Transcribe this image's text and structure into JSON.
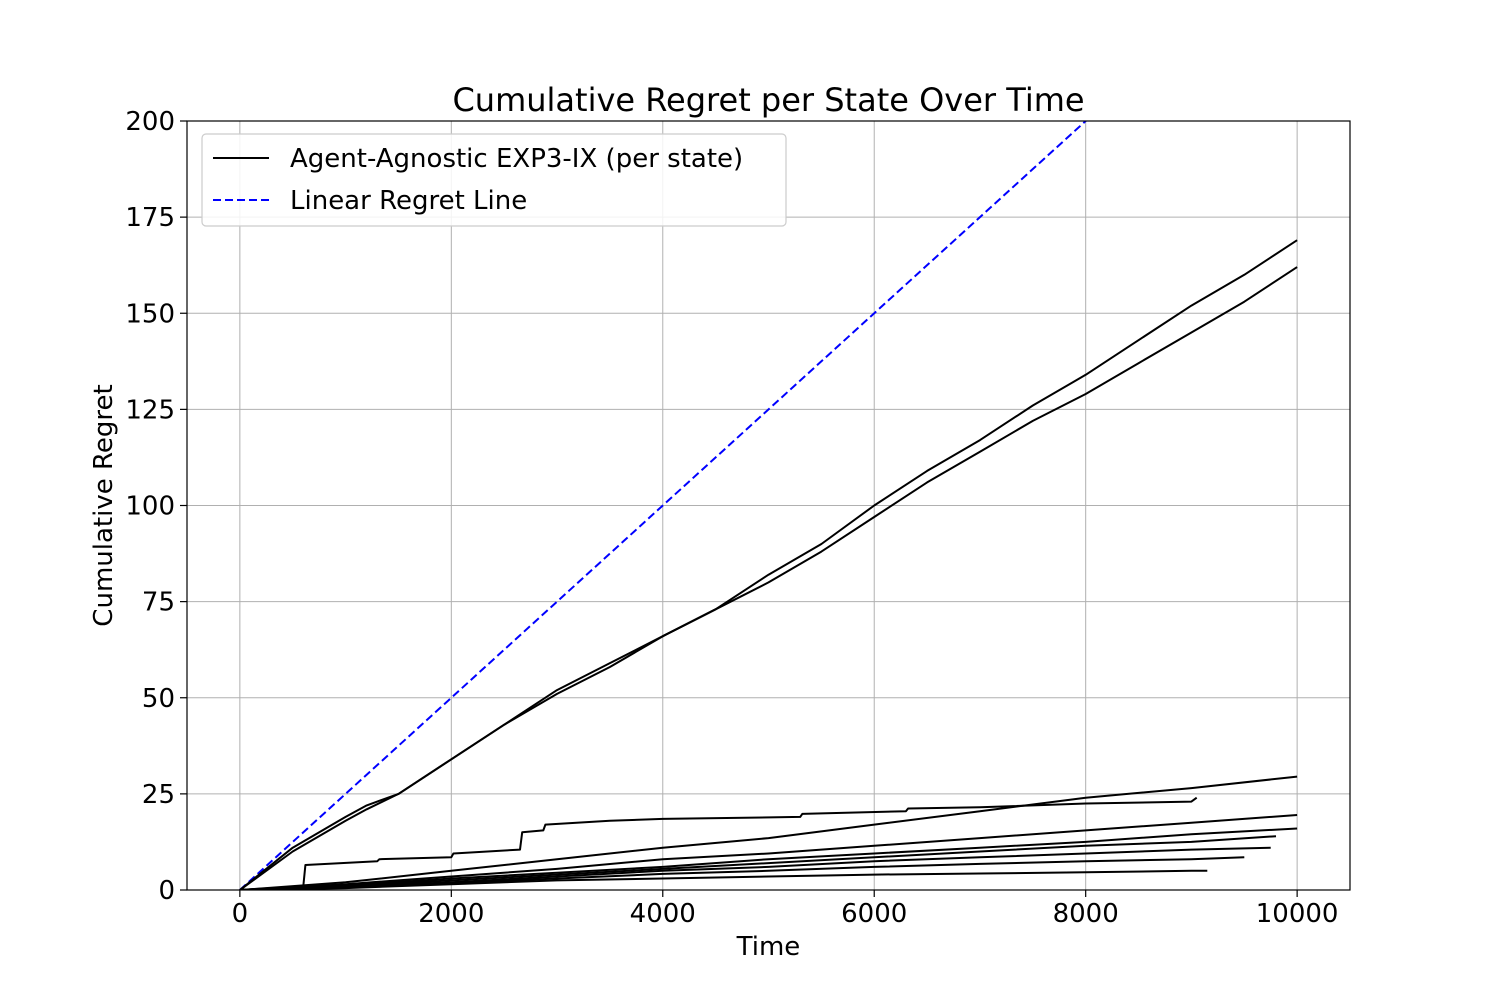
{
  "chart_data": {
    "type": "line",
    "title": "Cumulative Regret per State Over Time",
    "xlabel": "Time",
    "ylabel": "Cumulative Regret",
    "xlim": [
      -500,
      10500
    ],
    "ylim": [
      0,
      200
    ],
    "xticks": [
      0,
      2000,
      4000,
      6000,
      8000,
      10000
    ],
    "yticks": [
      0,
      25,
      50,
      75,
      100,
      125,
      150,
      175,
      200
    ],
    "grid": true,
    "legend_position": "top-left",
    "legend": [
      {
        "label": "Agent-Agnostic EXP3-IX (per state)",
        "color": "#000000",
        "style": "solid"
      },
      {
        "label": "Linear Regret Line",
        "color": "#0000ff",
        "style": "dashed"
      }
    ],
    "linear_line": {
      "x": [
        0,
        10000
      ],
      "y": [
        0,
        250
      ],
      "color": "#0000ff"
    },
    "series": [
      {
        "color": "#000000",
        "x": [
          0,
          500,
          1000,
          1200,
          1500,
          2000,
          2500,
          3000,
          3500,
          4000,
          4500,
          5000,
          5500,
          6000,
          6500,
          7000,
          7500,
          8000,
          8500,
          9000,
          9500,
          10000
        ],
        "y": [
          0,
          11,
          19,
          22,
          25,
          34,
          43,
          52,
          59,
          66,
          73,
          82,
          90,
          100,
          109,
          117,
          126,
          134,
          143,
          152,
          160,
          169
        ]
      },
      {
        "color": "#000000",
        "x": [
          0,
          500,
          1000,
          1200,
          1500,
          2000,
          2500,
          3000,
          3500,
          4000,
          4500,
          5000,
          5500,
          6000,
          6500,
          7000,
          7500,
          8000,
          8500,
          9000,
          9500,
          10000
        ],
        "y": [
          0,
          10,
          18,
          21,
          25,
          34,
          43,
          51,
          58,
          66,
          73,
          80,
          88,
          97,
          106,
          114,
          122,
          129,
          137,
          145,
          153,
          162
        ]
      },
      {
        "color": "#000000",
        "x": [
          0,
          600,
          620,
          1300,
          1320,
          2000,
          2020,
          2650,
          2670,
          2870,
          2890,
          3500,
          4000,
          5300,
          5320,
          6300,
          6320,
          7000,
          8000,
          9000,
          9050
        ],
        "y": [
          0,
          1,
          6.5,
          7.5,
          8,
          8.5,
          9.5,
          10.5,
          15,
          15.5,
          17,
          18,
          18.5,
          19,
          19.8,
          20.5,
          21.2,
          21.5,
          22.5,
          23,
          24
        ]
      },
      {
        "color": "#000000",
        "x": [
          0,
          1000,
          2000,
          3000,
          4000,
          5000,
          6000,
          7000,
          8000,
          9000,
          10000
        ],
        "y": [
          0,
          2,
          5,
          8,
          11,
          13.5,
          17,
          20.5,
          24,
          26.5,
          29.5
        ]
      },
      {
        "color": "#000000",
        "x": [
          0,
          1000,
          2000,
          3000,
          4000,
          5000,
          6000,
          7000,
          8000,
          9000,
          10000
        ],
        "y": [
          0,
          1.5,
          3.5,
          5.5,
          8,
          9.5,
          11.5,
          13.5,
          15.5,
          17.5,
          19.5
        ]
      },
      {
        "color": "#000000",
        "x": [
          0,
          1000,
          2000,
          3000,
          4000,
          5000,
          6000,
          7000,
          8000,
          9000,
          10000
        ],
        "y": [
          0,
          1.2,
          3,
          4.5,
          6,
          8,
          9.5,
          11,
          12.5,
          14.5,
          16
        ]
      },
      {
        "color": "#000000",
        "x": [
          0,
          1000,
          2000,
          3000,
          4000,
          5000,
          6000,
          7000,
          8000,
          9000,
          9800
        ],
        "y": [
          0,
          1,
          2.5,
          4,
          5.5,
          7,
          8.5,
          10,
          11.5,
          12.5,
          14
        ]
      },
      {
        "color": "#000000",
        "x": [
          0,
          1000,
          2000,
          3000,
          4000,
          5000,
          6000,
          7000,
          8000,
          9000,
          9750
        ],
        "y": [
          0,
          0.8,
          2,
          3.5,
          5,
          6,
          7.5,
          8.5,
          9.5,
          10.5,
          11
        ]
      },
      {
        "color": "#000000",
        "x": [
          0,
          1000,
          2000,
          3000,
          4000,
          5000,
          6000,
          7000,
          8000,
          9000,
          9500
        ],
        "y": [
          0,
          0.7,
          1.8,
          3,
          4.2,
          5,
          6,
          6.8,
          7.5,
          8,
          8.5
        ]
      },
      {
        "color": "#000000",
        "x": [
          0,
          1000,
          2000,
          3000,
          4000,
          5000,
          6000,
          7000,
          8000,
          9000,
          9150
        ],
        "y": [
          0,
          0.5,
          1.5,
          2.5,
          3,
          3.5,
          4,
          4.3,
          4.6,
          5,
          5
        ]
      }
    ]
  }
}
